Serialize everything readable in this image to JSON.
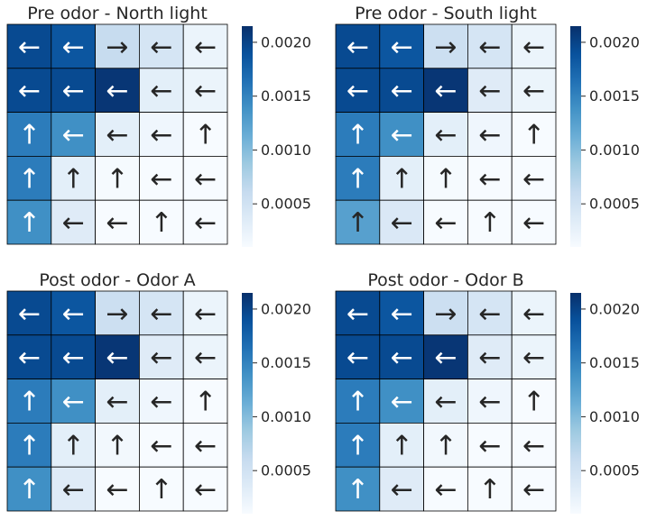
{
  "chart_data": [
    {
      "type": "heatmap",
      "title": "Pre odor - North light",
      "rows": 5,
      "cols": 5,
      "values": [
        [
          0.00195,
          0.00185,
          0.0006,
          0.00045,
          0.00022
        ],
        [
          0.00195,
          0.00195,
          0.0021,
          0.0003,
          0.00022
        ],
        [
          0.00155,
          0.0014,
          0.0003,
          0.00018,
          0.0001
        ],
        [
          0.00155,
          0.0003,
          0.00012,
          8e-05,
          5e-05
        ],
        [
          0.0014,
          0.00035,
          0.0001,
          4e-05,
          3e-05
        ]
      ],
      "arrows": [
        [
          "←",
          "←",
          "→",
          "←",
          "←"
        ],
        [
          "←",
          "←",
          "←",
          "←",
          "←"
        ],
        [
          "↑",
          "←",
          "←",
          "←",
          "↑"
        ],
        [
          "↑",
          "↑",
          "↑",
          "←",
          "←"
        ],
        [
          "↑",
          "←",
          "←",
          "↑",
          "←"
        ]
      ],
      "colorbar": {
        "min": 0.0001,
        "max": 0.00215,
        "ticks": [
          "0.0005",
          "0.0010",
          "0.0015",
          "0.0020"
        ]
      }
    },
    {
      "type": "heatmap",
      "title": "Pre odor - South light",
      "rows": 5,
      "cols": 5,
      "values": [
        [
          0.00195,
          0.00185,
          0.00055,
          0.00045,
          0.00022
        ],
        [
          0.00195,
          0.00195,
          0.0021,
          0.00035,
          0.00022
        ],
        [
          0.00155,
          0.0014,
          0.0003,
          0.00018,
          0.0001
        ],
        [
          0.00155,
          0.0003,
          0.00012,
          8e-05,
          5e-05
        ],
        [
          0.00125,
          0.0004,
          0.0001,
          4e-05,
          3e-05
        ]
      ],
      "arrows": [
        [
          "←",
          "←",
          "→",
          "←",
          "←"
        ],
        [
          "←",
          "←",
          "←",
          "←",
          "←"
        ],
        [
          "↑",
          "←",
          "←",
          "←",
          "↑"
        ],
        [
          "↑",
          "↑",
          "↑",
          "←",
          "←"
        ],
        [
          "↑",
          "←",
          "←",
          "↑",
          "←"
        ]
      ],
      "colorbar": {
        "min": 0.0001,
        "max": 0.00215,
        "ticks": [
          "0.0005",
          "0.0010",
          "0.0015",
          "0.0020"
        ]
      }
    },
    {
      "type": "heatmap",
      "title": "Post odor - Odor A",
      "rows": 5,
      "cols": 5,
      "values": [
        [
          0.00195,
          0.00185,
          0.00055,
          0.00045,
          0.00022
        ],
        [
          0.00195,
          0.00195,
          0.0021,
          0.00035,
          0.00022
        ],
        [
          0.00155,
          0.0014,
          0.0003,
          0.00018,
          0.0001
        ],
        [
          0.00155,
          0.0003,
          0.00015,
          8e-05,
          5e-05
        ],
        [
          0.0014,
          0.00035,
          0.0001,
          4e-05,
          3e-05
        ]
      ],
      "arrows": [
        [
          "←",
          "←",
          "→",
          "←",
          "←"
        ],
        [
          "←",
          "←",
          "←",
          "←",
          "←"
        ],
        [
          "↑",
          "←",
          "←",
          "←",
          "↑"
        ],
        [
          "↑",
          "↑",
          "↑",
          "←",
          "←"
        ],
        [
          "↑",
          "←",
          "←",
          "↑",
          "←"
        ]
      ],
      "colorbar": {
        "min": 0.0001,
        "max": 0.00215,
        "ticks": [
          "0.0005",
          "0.0010",
          "0.0015",
          "0.0020"
        ]
      }
    },
    {
      "type": "heatmap",
      "title": "Post odor - Odor B",
      "rows": 5,
      "cols": 5,
      "values": [
        [
          0.00195,
          0.00185,
          0.00055,
          0.00045,
          0.00022
        ],
        [
          0.00195,
          0.00195,
          0.0021,
          0.00035,
          0.00022
        ],
        [
          0.00155,
          0.0014,
          0.0003,
          0.00018,
          0.0001
        ],
        [
          0.00155,
          0.0003,
          0.00015,
          8e-05,
          5e-05
        ],
        [
          0.0014,
          0.00035,
          0.0001,
          4e-05,
          3e-05
        ]
      ],
      "arrows": [
        [
          "←",
          "←",
          "→",
          "←",
          "←"
        ],
        [
          "←",
          "←",
          "←",
          "←",
          "←"
        ],
        [
          "↑",
          "←",
          "←",
          "←",
          "↑"
        ],
        [
          "↑",
          "↑",
          "↑",
          "←",
          "←"
        ],
        [
          "↑",
          "←",
          "←",
          "↑",
          "←"
        ]
      ],
      "colorbar": {
        "min": 0.0001,
        "max": 0.00215,
        "ticks": [
          "0.0005",
          "0.0010",
          "0.0015",
          "0.0020"
        ]
      }
    }
  ],
  "colormap": "Blues",
  "colors": {
    "cell_border": "#000000",
    "dark_text": "#262626",
    "light_text": "#ffffff"
  }
}
